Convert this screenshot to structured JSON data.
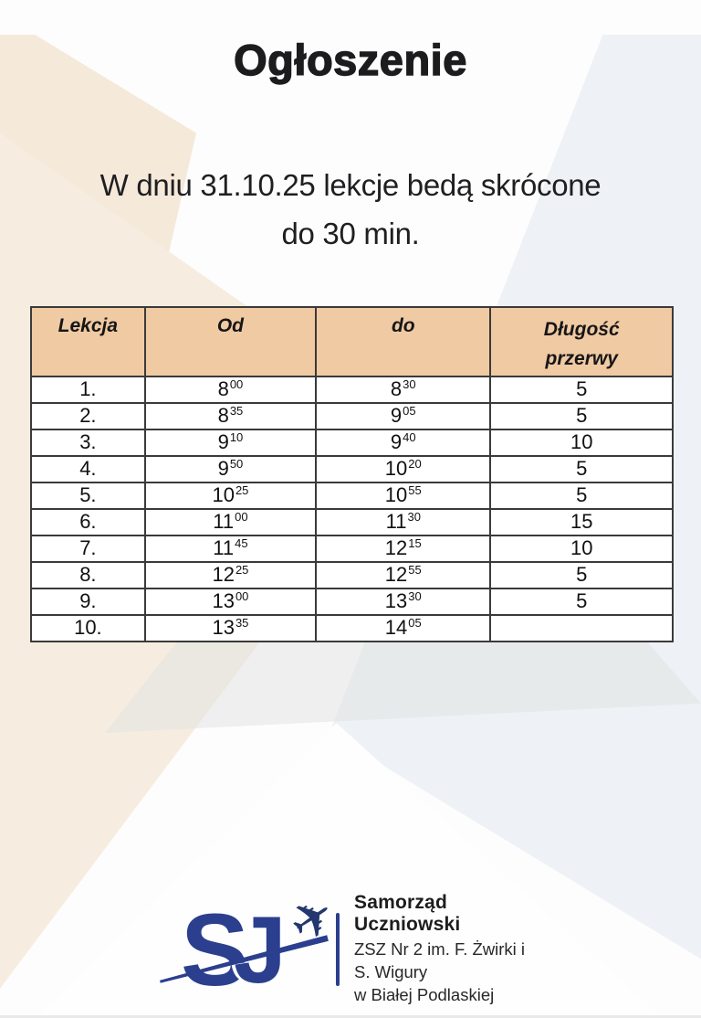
{
  "page": {
    "title": "Ogłoszenie",
    "subtitle_line1": "W dniu 31.10.25 lekcje bedą skrócone",
    "subtitle_line2": "do 30 min."
  },
  "table": {
    "headers": [
      "Lekcja",
      "Od",
      "do",
      "Długość przerwy"
    ],
    "rows": [
      {
        "nr": "1.",
        "od_h": "8",
        "od_m": "00",
        "do_h": "8",
        "do_m": "30",
        "przerwa": "5"
      },
      {
        "nr": "2.",
        "od_h": "8",
        "od_m": "35",
        "do_h": "9",
        "do_m": "05",
        "przerwa": "5"
      },
      {
        "nr": "3.",
        "od_h": "9",
        "od_m": "10",
        "do_h": "9",
        "do_m": "40",
        "przerwa": "10"
      },
      {
        "nr": "4.",
        "od_h": "9",
        "od_m": "50",
        "do_h": "10",
        "do_m": "20",
        "przerwa": "5"
      },
      {
        "nr": "5.",
        "od_h": "10",
        "od_m": "25",
        "do_h": "10",
        "do_m": "55",
        "przerwa": "5"
      },
      {
        "nr": "6.",
        "od_h": "11",
        "od_m": "00",
        "do_h": "11",
        "do_m": "30",
        "przerwa": "15"
      },
      {
        "nr": "7.",
        "od_h": "11",
        "od_m": "45",
        "do_h": "12",
        "do_m": "15",
        "przerwa": "10"
      },
      {
        "nr": "8.",
        "od_h": "12",
        "od_m": "25",
        "do_h": "12",
        "do_m": "55",
        "przerwa": "5"
      },
      {
        "nr": "9.",
        "od_h": "13",
        "od_m": "00",
        "do_h": "13",
        "do_m": "30",
        "przerwa": "5"
      },
      {
        "nr": "10.",
        "od_h": "13",
        "od_m": "35",
        "do_h": "14",
        "do_m": "05",
        "przerwa": ""
      }
    ]
  },
  "logo": {
    "monogram_s": "S",
    "monogram_j": "J",
    "plane_icon": "✈",
    "org_name": "Samorząd Uczniowski",
    "org_line2": "ZSZ Nr 2 im. F. Żwirki i S. Wigury",
    "org_line3": "w Białej Podlaskiej"
  },
  "colors": {
    "header_bg": "#f0caa3",
    "navy": "#2b3f8e",
    "peach_bg": "#f5e9da",
    "bluegray_bg": "#eef1f6"
  }
}
